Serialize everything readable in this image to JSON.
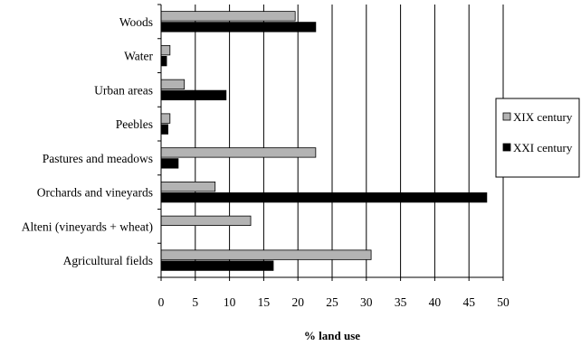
{
  "chart_data": {
    "type": "bar",
    "orientation": "horizontal",
    "categories": [
      "Woods",
      "Water",
      "Urban areas",
      "Peebles",
      "Pastures and meadows",
      "Orchards and vineyards",
      "Alteni (vineyards + wheat)",
      "Agricultural fields"
    ],
    "series": [
      {
        "name": "XIX century",
        "color": "#b3b3b3",
        "values": [
          19.6,
          1.3,
          3.4,
          1.3,
          22.6,
          7.9,
          13.1,
          30.7
        ]
      },
      {
        "name": "XXI century",
        "color": "#000000",
        "values": [
          22.6,
          0.8,
          9.5,
          1.0,
          2.5,
          47.6,
          0,
          16.4
        ]
      }
    ],
    "xlabel": "% land use",
    "xlim": [
      0,
      50
    ],
    "xticks": [
      "0",
      "5",
      "10",
      "15",
      "20",
      "25",
      "30",
      "35",
      "40",
      "45",
      "50"
    ],
    "grid": "vertical",
    "legend_position": "right"
  }
}
